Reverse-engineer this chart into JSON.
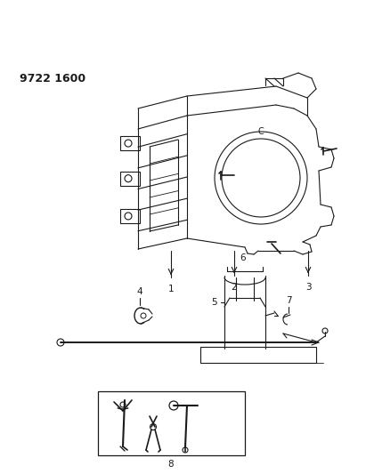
{
  "title": "9722 1600",
  "bg_color": "#ffffff",
  "line_color": "#1a1a1a",
  "title_fontsize": 9,
  "label_fontsize": 7.5,
  "fig_width": 4.11,
  "fig_height": 5.33,
  "dpi": 100
}
